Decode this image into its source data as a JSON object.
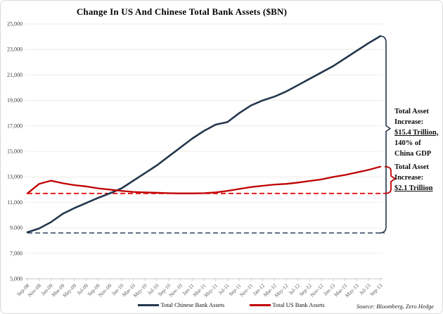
{
  "title": "Change In US And Chinese Total Bank Assets ($BN)",
  "source": "Source: Bloomberg, Zero Hedge",
  "legend": [
    {
      "label": "Total Chinese Bank Assets",
      "color": "#24374E"
    },
    {
      "label": "Total US Bank Assets",
      "color": "#C00000"
    }
  ],
  "annotations": [
    {
      "lines": [
        "Total Asset",
        "Increase:",
        "$15.4 Trillion,",
        "140% of",
        "China GDP"
      ]
    },
    {
      "lines": [
        "Total Asset",
        "Increase:",
        "$2.1 Trillion"
      ]
    }
  ],
  "chart_data": {
    "type": "line",
    "title": "Change In US And Chinese Total Bank Assets ($BN)",
    "xlabel": "",
    "ylabel": "",
    "ylim": [
      5000,
      25000
    ],
    "yticks": [
      25000,
      23000,
      21000,
      19000,
      17000,
      15000,
      13000,
      11000,
      9000,
      7000,
      5000
    ],
    "grid": true,
    "legend_position": "bottom",
    "categories": [
      "Sep-08",
      "Nov-08",
      "Jan-09",
      "Mar-09",
      "May-09",
      "Jul-09",
      "Sep-09",
      "Nov-09",
      "Jan-10",
      "Mar-10",
      "May-10",
      "Jul-10",
      "Sep-10",
      "Nov-10",
      "Jan-11",
      "Mar-11",
      "May-11",
      "Jul-11",
      "Sep-11",
      "Nov-11",
      "Jan-12",
      "Mar-12",
      "May-12",
      "Jul-12",
      "Sep-12",
      "Nov-12",
      "Jan-13",
      "Mar-13",
      "May-13",
      "Jul-13",
      "Sep-13"
    ],
    "series": [
      {
        "name": "Total Chinese Bank Assets",
        "color": "#24374E",
        "values": [
          8650,
          8950,
          9450,
          10100,
          10550,
          10950,
          11350,
          11700,
          12100,
          12700,
          13300,
          13900,
          14600,
          15300,
          16000,
          16600,
          17100,
          17300,
          18000,
          18600,
          19000,
          19300,
          19700,
          20200,
          20700,
          21200,
          21700,
          22300,
          22900,
          23500,
          24050
        ]
      },
      {
        "name": "Total US Bank Assets",
        "color": "#C00000",
        "values": [
          11700,
          12450,
          12700,
          12500,
          12350,
          12250,
          12100,
          12000,
          11900,
          11820,
          11780,
          11750,
          11720,
          11700,
          11700,
          11720,
          11780,
          11900,
          12050,
          12200,
          12300,
          12400,
          12450,
          12550,
          12680,
          12800,
          13000,
          13150,
          13350,
          13550,
          13800
        ]
      }
    ],
    "baselines": [
      {
        "series": "Total Chinese Bank Assets",
        "value": 8600,
        "color": "#4E5D72",
        "style": "dashed"
      },
      {
        "series": "Total US Bank Assets",
        "value": 11700,
        "color": "#E00000",
        "style": "dashed"
      }
    ],
    "colors": {
      "grid": "#EDEBE4",
      "axis": "#C6C6C6",
      "xtick_label": "#595959",
      "ytick_label": "#3F3F3F"
    }
  }
}
